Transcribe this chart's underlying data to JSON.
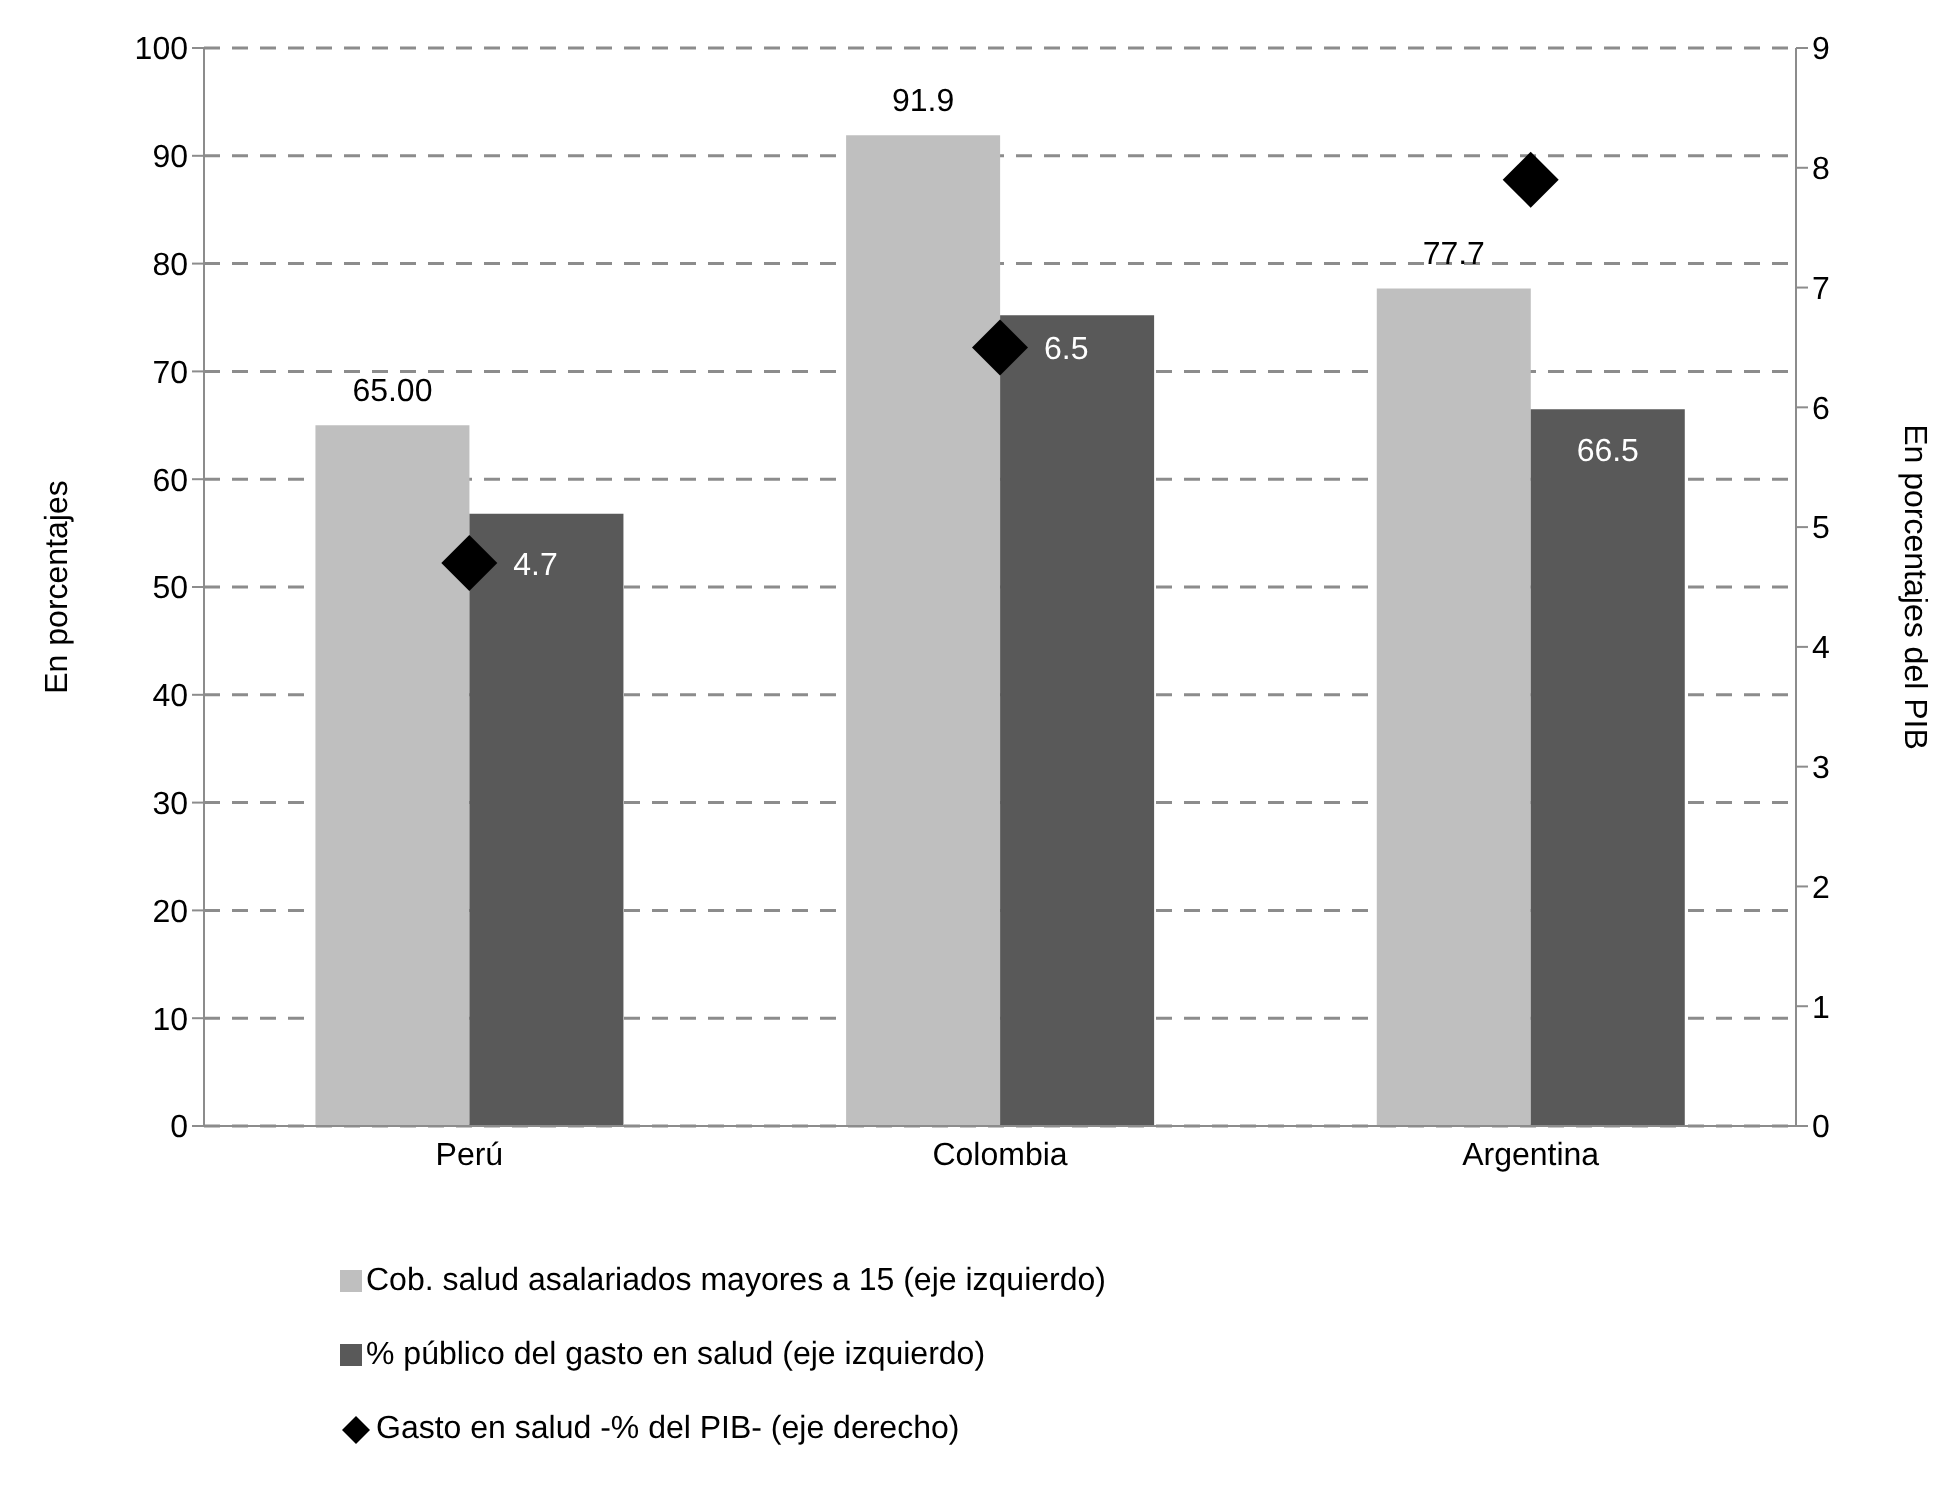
{
  "chart_data": {
    "type": "bar",
    "categories": [
      "Perú",
      "Colombia",
      "Argentina"
    ],
    "series": [
      {
        "name": "Cob. salud asalariados mayores a 15 (eje izquierdo)",
        "color": "#bfbfbf",
        "values": [
          65.0,
          91.9,
          77.7
        ],
        "value_labels": [
          "65.00",
          "91.9",
          "77.7"
        ]
      },
      {
        "name": "% público del gasto en salud (eje izquierdo)",
        "color": "#595959",
        "values": [
          56.8,
          75.2,
          66.5
        ],
        "value_labels": [
          null,
          null,
          "66.5"
        ]
      },
      {
        "name": "Gasto en salud -% del PIB- (eje derecho)",
        "type": "scatter",
        "axis": "y2",
        "marker": "diamond",
        "color": "#000000",
        "values": [
          4.7,
          6.5,
          7.9
        ],
        "value_labels": [
          "4.7",
          "6.5",
          null
        ]
      }
    ],
    "ylabel": "En porcentajes",
    "y2label": "En porcentajes del PIB",
    "ylim": [
      0,
      100
    ],
    "yticks": [
      0,
      10,
      20,
      30,
      40,
      50,
      60,
      70,
      80,
      90,
      100
    ],
    "y2lim": [
      0,
      9
    ],
    "y2ticks": [
      0,
      1,
      2,
      3,
      4,
      5,
      6,
      7,
      8,
      9
    ],
    "grid": "y",
    "legend": "bottom"
  }
}
